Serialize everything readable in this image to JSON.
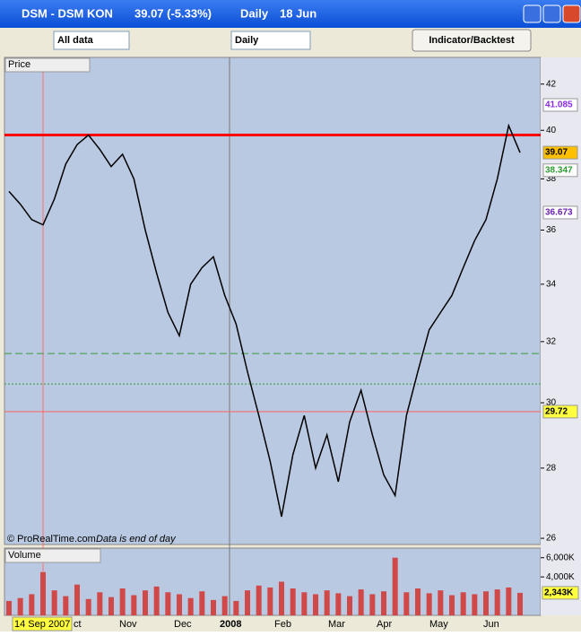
{
  "window": {
    "title": "DSM - DSM KON",
    "quote": "39.07 (-5.33%)",
    "period": "Daily",
    "date": "18 Jun"
  },
  "toolbar": {
    "range": "All data",
    "interval": "Daily",
    "button": "Indicator/Backtest"
  },
  "footer": {
    "copyright": "© ProRealTime.com",
    "note": "Data is end of day"
  },
  "x_axis": {
    "labels": [
      "14 Sep 2007",
      "ct",
      "Nov",
      "Dec",
      "2008",
      "Feb",
      "Mar",
      "Apr",
      "May",
      "Jun"
    ]
  },
  "chart_data": [
    {
      "type": "line",
      "title": "Price",
      "log_scale": true,
      "ylim": [
        25.83,
        43.2
      ],
      "yticks": [
        26,
        28,
        30,
        32,
        34,
        36,
        38,
        40,
        42
      ],
      "color": "#000000",
      "values": [
        37.5,
        37.0,
        36.4,
        36.2,
        37.2,
        38.6,
        39.4,
        39.8,
        39.2,
        38.5,
        39.0,
        38.0,
        36.0,
        34.4,
        33.0,
        32.2,
        34.0,
        34.6,
        35.0,
        33.6,
        32.6,
        31.0,
        29.6,
        28.2,
        26.6,
        28.4,
        29.6,
        28.0,
        29.0,
        27.6,
        29.4,
        30.4,
        29.0,
        27.8,
        27.2,
        29.6,
        31.0,
        32.4,
        33.0,
        33.6,
        34.6,
        35.6,
        36.4,
        38.0,
        40.2,
        39.07
      ],
      "hlines": [
        {
          "value": 39.8,
          "color": "#ff0000",
          "style": "thick"
        },
        {
          "value": 29.72,
          "color": "#ff6060",
          "style": "solid"
        },
        {
          "value": 31.6,
          "color": "#3a9a3a",
          "style": "dashed"
        },
        {
          "value": 30.6,
          "color": "#3a9a3a",
          "style": "dotted"
        }
      ],
      "price_labels": [
        {
          "value": 41.085,
          "color": "#8a2be2",
          "bg": "#ffffff"
        },
        {
          "value": 39.07,
          "color": "#000000",
          "bg": "#ffc000"
        },
        {
          "value": 38.347,
          "color": "#2e9a2e",
          "bg": "#ffffff"
        },
        {
          "value": 36.673,
          "color": "#6a1fb0",
          "bg": "#ffffff"
        },
        {
          "value": 29.72,
          "color": "#000000",
          "bg": "#ffff40"
        }
      ]
    },
    {
      "type": "bar",
      "title": "Volume",
      "ylim": [
        0,
        7000
      ],
      "color": "#d04848",
      "yticks": [
        {
          "value": 6000,
          "label": "6,000K"
        },
        {
          "value": 4000,
          "label": "4,000K"
        }
      ],
      "marker": {
        "value": 2343,
        "label": "2,343K"
      },
      "values": [
        1500,
        1800,
        2200,
        4500,
        2600,
        2000,
        3200,
        1700,
        2400,
        1900,
        2800,
        2100,
        2600,
        3000,
        2400,
        2200,
        1800,
        2500,
        1600,
        2000,
        1500,
        2600,
        3100,
        2900,
        3500,
        2800,
        2400,
        2200,
        2600,
        2300,
        2000,
        2700,
        2200,
        2500,
        6000,
        2400,
        2800,
        2300,
        2600,
        2100,
        2400,
        2200,
        2500,
        2700,
        2900,
        2343
      ]
    }
  ]
}
